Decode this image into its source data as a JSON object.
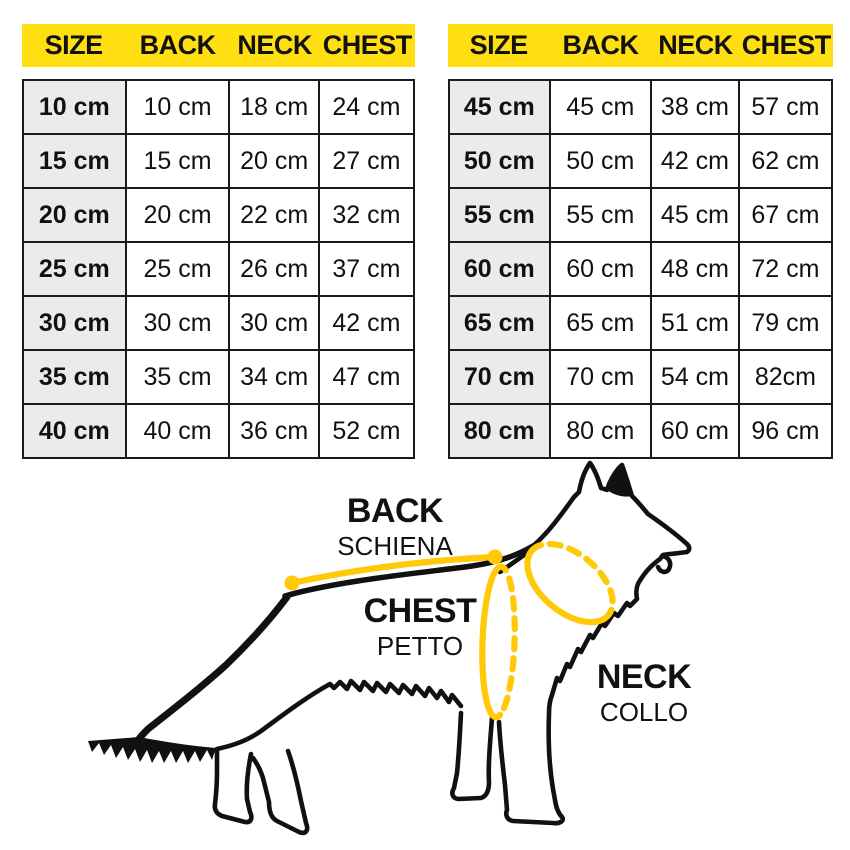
{
  "colors": {
    "header_bg": "#FFDE12",
    "measure_line": "#FFC907",
    "size_col_bg": "#EBEBEB",
    "border": "#1A1A1A",
    "text": "#111111"
  },
  "tables": [
    {
      "name": "sizes-10-40",
      "headers": [
        "SIZE",
        "BACK",
        "NECK",
        "CHEST"
      ],
      "rows": [
        [
          "10 cm",
          "10 cm",
          "18 cm",
          "24 cm"
        ],
        [
          "15 cm",
          "15 cm",
          "20 cm",
          "27 cm"
        ],
        [
          "20 cm",
          "20 cm",
          "22 cm",
          "32 cm"
        ],
        [
          "25 cm",
          "25 cm",
          "26 cm",
          "37 cm"
        ],
        [
          "30 cm",
          "30 cm",
          "30 cm",
          "42 cm"
        ],
        [
          "35 cm",
          "35 cm",
          "34 cm",
          "47 cm"
        ],
        [
          "40 cm",
          "40 cm",
          "36 cm",
          "52 cm"
        ]
      ]
    },
    {
      "name": "sizes-45-80",
      "headers": [
        "SIZE",
        "BACK",
        "NECK",
        "CHEST"
      ],
      "rows": [
        [
          "45 cm",
          "45 cm",
          "38 cm",
          "57 cm"
        ],
        [
          "50 cm",
          "50 cm",
          "42 cm",
          "62 cm"
        ],
        [
          "55 cm",
          "55 cm",
          "45 cm",
          "67 cm"
        ],
        [
          "60 cm",
          "60 cm",
          "48 cm",
          "72 cm"
        ],
        [
          "65 cm",
          "65 cm",
          "51 cm",
          "79 cm"
        ],
        [
          "70 cm",
          "70 cm",
          "54 cm",
          "82cm"
        ],
        [
          "80 cm",
          "80 cm",
          "60 cm",
          "96 cm"
        ]
      ]
    }
  ],
  "diagram": {
    "back_label": "BACK",
    "back_sublabel": "SCHIENA",
    "chest_label": "CHEST",
    "chest_sublabel": "PETTO",
    "neck_label": "NECK",
    "neck_sublabel": "COLLO"
  }
}
